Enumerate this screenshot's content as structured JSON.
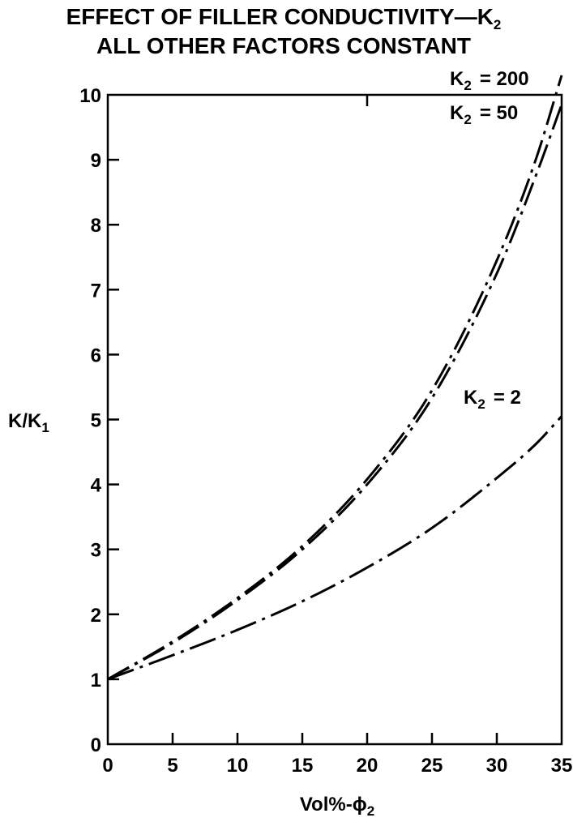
{
  "chart_data": {
    "type": "line",
    "title_line1_main": "EFFECT OF FILLER CONDUCTIVITY—K",
    "title_line1_sub": "2",
    "title_line2": "ALL OTHER FACTORS CONSTANT",
    "xlabel_main": "Vol%-ϕ",
    "xlabel_sub": "2",
    "ylabel_main": "K/K",
    "ylabel_sub": "1",
    "xlim": [
      0,
      35
    ],
    "ylim": [
      0,
      10
    ],
    "x_ticks": [
      "0",
      "5",
      "10",
      "15",
      "20",
      "25",
      "30",
      "35"
    ],
    "y_ticks": [
      "0",
      "1",
      "2",
      "3",
      "4",
      "5",
      "6",
      "7",
      "8",
      "9",
      "10"
    ],
    "grid": false,
    "x": [
      0,
      5,
      10,
      15,
      20,
      25,
      30,
      33,
      35
    ],
    "series": [
      {
        "name_main": "K",
        "name_sub": "2",
        "name_value": "= 200",
        "values": [
          1.0,
          1.58,
          2.25,
          3.05,
          4.08,
          5.45,
          7.45,
          9.0,
          10.3
        ]
      },
      {
        "name_main": "K",
        "name_sub": "2",
        "name_value": "= 50",
        "values": [
          1.0,
          1.56,
          2.22,
          3.0,
          4.0,
          5.33,
          7.25,
          8.75,
          9.85
        ]
      },
      {
        "name_main": "K",
        "name_sub": "2",
        "name_value": "= 2",
        "values": [
          1.0,
          1.37,
          1.76,
          2.2,
          2.72,
          3.33,
          4.1,
          4.62,
          5.05
        ]
      }
    ]
  }
}
